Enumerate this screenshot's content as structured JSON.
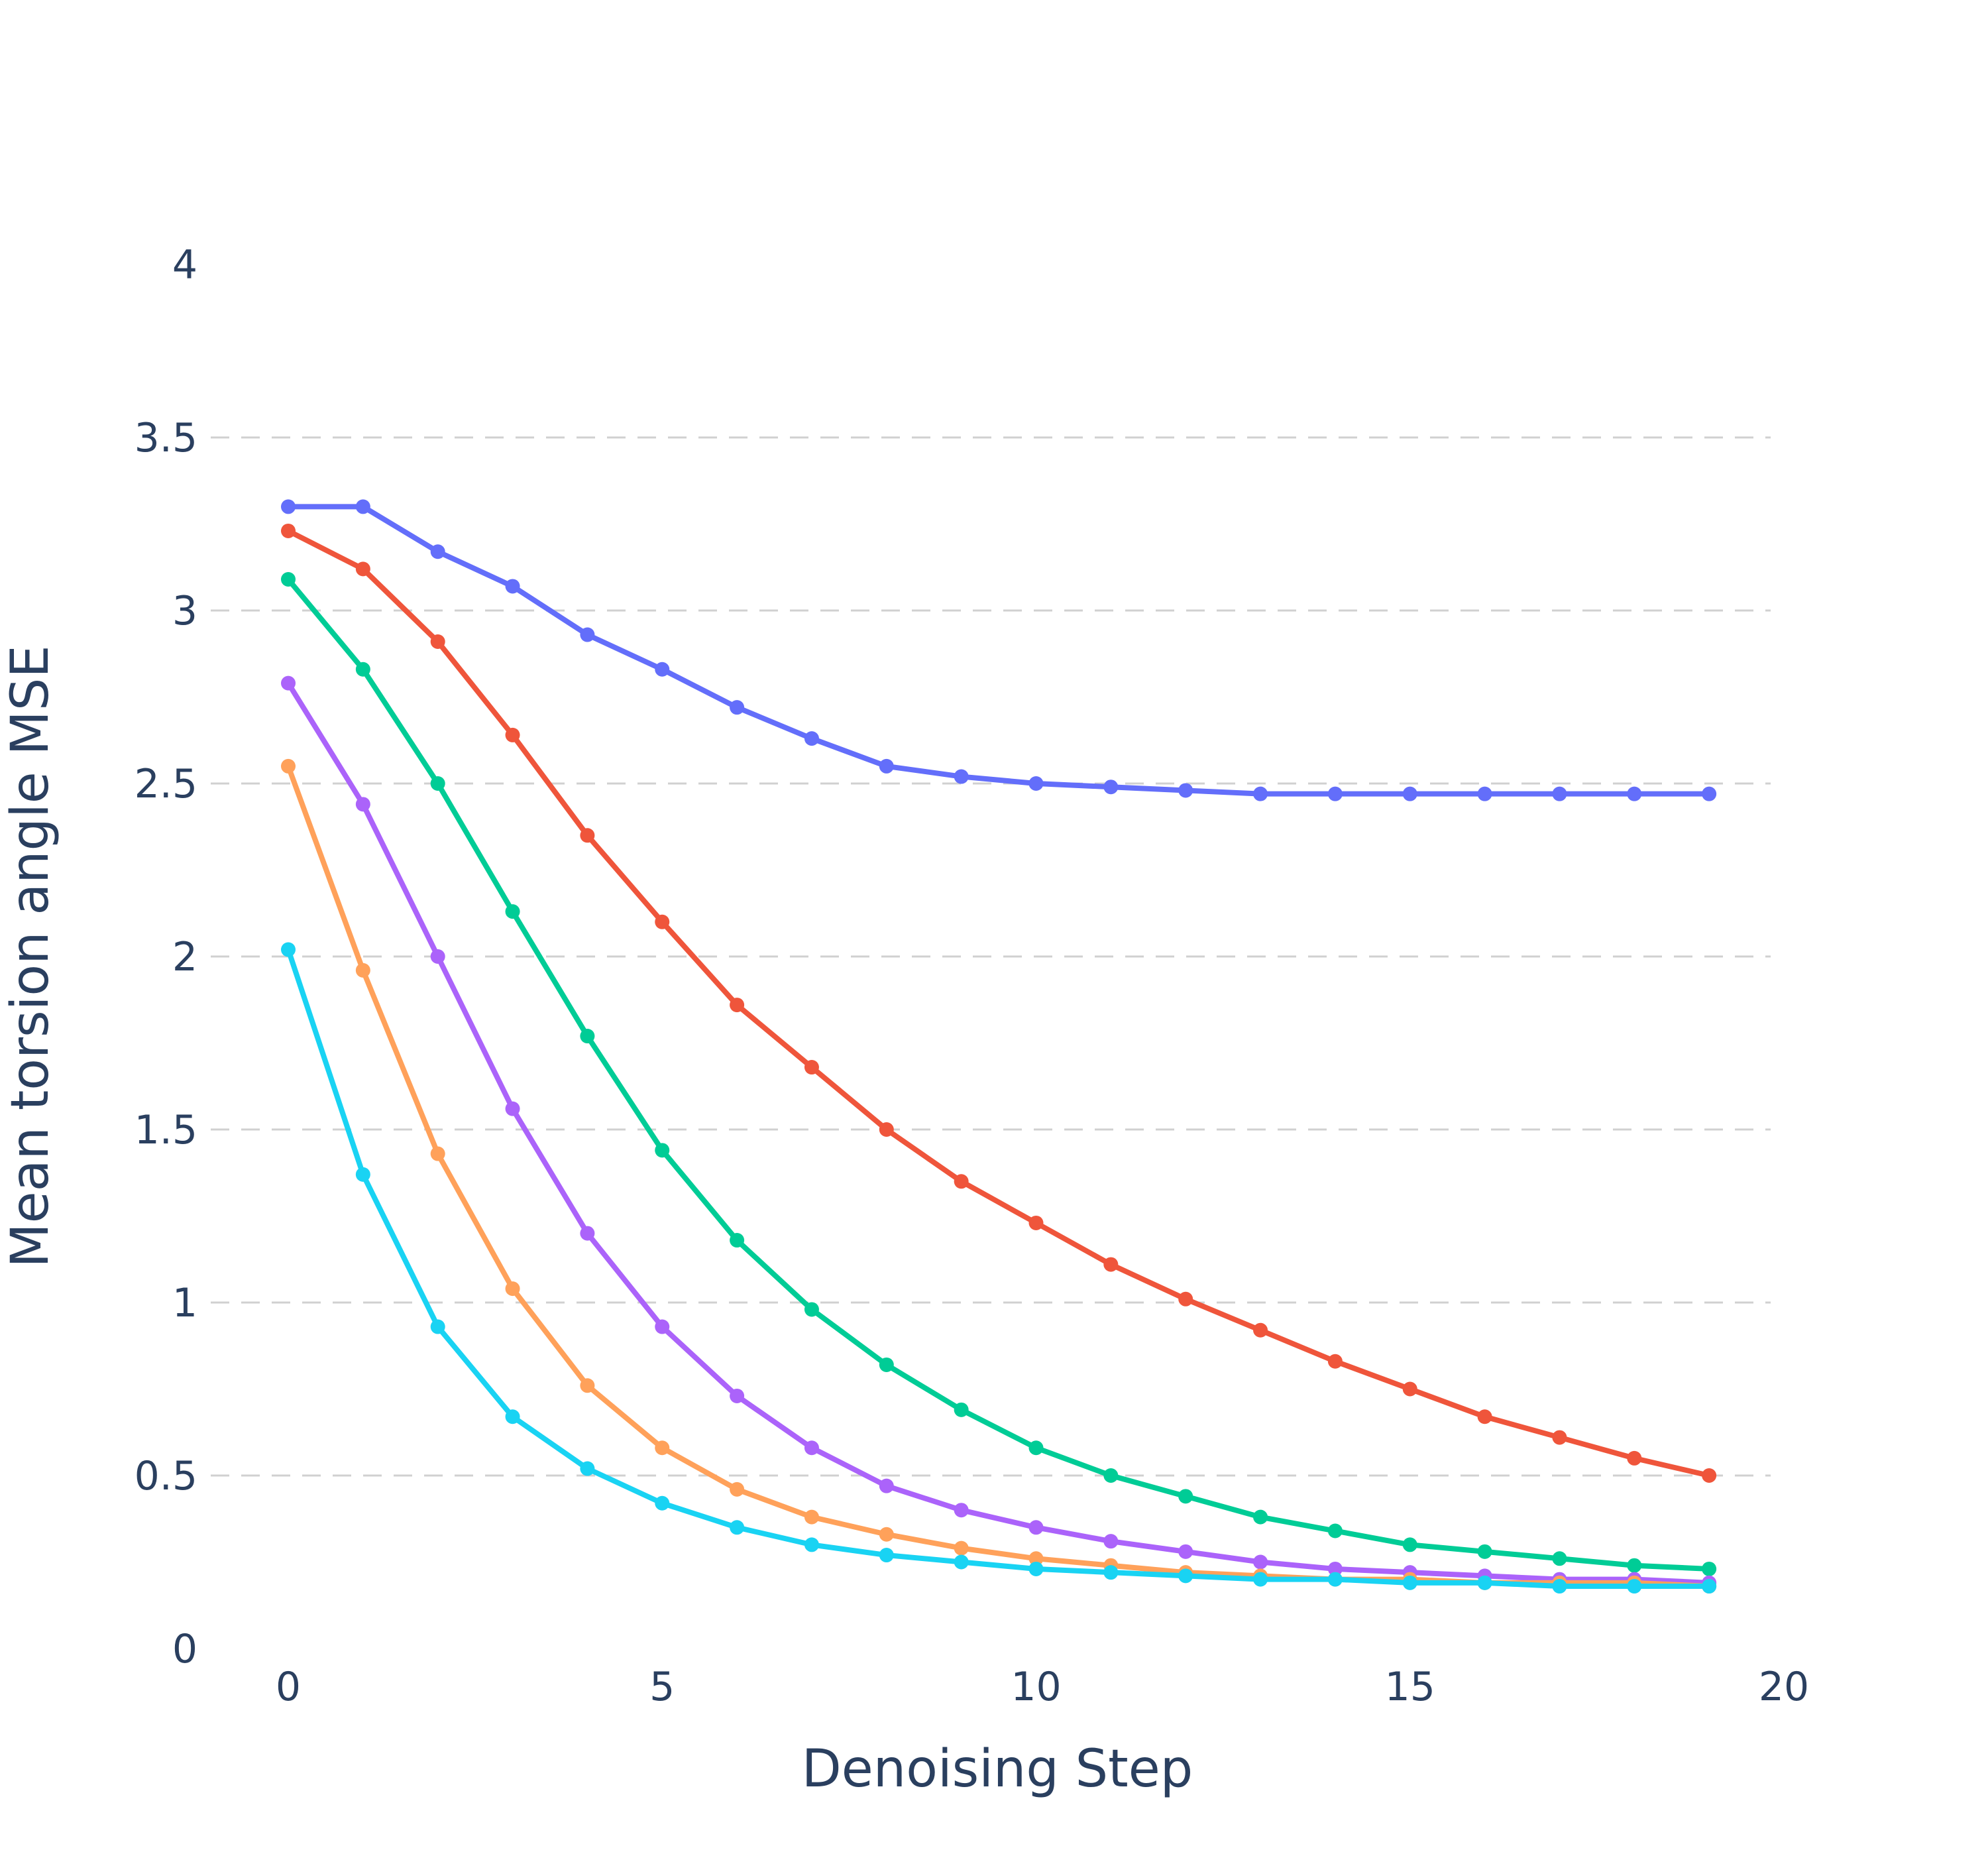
{
  "chart_data": {
    "type": "line",
    "title": "",
    "xlabel": "Denoising Step",
    "ylabel": "Mean torsion angle MSE",
    "xlim": [
      -1,
      20.5
    ],
    "ylim": [
      0,
      4
    ],
    "xticks": [
      "0",
      "5",
      "10",
      "15",
      "20"
    ],
    "yticks": [
      "0",
      "0.5",
      "1",
      "1.5",
      "2",
      "2.5",
      "3",
      "3.5",
      "4"
    ],
    "grid": {
      "y": true,
      "x": false,
      "style": "dashed"
    },
    "markers": true,
    "x": [
      0,
      1,
      2,
      3,
      4,
      5,
      6,
      7,
      8,
      9,
      10,
      11,
      12,
      13,
      14,
      15,
      16,
      17,
      18,
      19
    ],
    "series": [
      {
        "color": "#636efa",
        "values": [
          3.3,
          3.3,
          3.17,
          3.07,
          2.93,
          2.83,
          2.72,
          2.63,
          2.55,
          2.52,
          2.5,
          2.49,
          2.48,
          2.47,
          2.47,
          2.47,
          2.47,
          2.47,
          2.47,
          2.47
        ]
      },
      {
        "color": "#ef553b",
        "values": [
          3.23,
          3.12,
          2.91,
          2.64,
          2.35,
          2.1,
          1.86,
          1.68,
          1.5,
          1.35,
          1.23,
          1.11,
          1.01,
          0.92,
          0.83,
          0.75,
          0.67,
          0.61,
          0.55,
          0.5
        ]
      },
      {
        "color": "#00cc96",
        "values": [
          3.09,
          2.83,
          2.5,
          2.13,
          1.77,
          1.44,
          1.18,
          0.98,
          0.82,
          0.69,
          0.58,
          0.5,
          0.44,
          0.38,
          0.34,
          0.3,
          0.28,
          0.26,
          0.24,
          0.23
        ]
      },
      {
        "color": "#ab63fa",
        "values": [
          2.79,
          2.44,
          2.0,
          1.56,
          1.2,
          0.93,
          0.73,
          0.58,
          0.47,
          0.4,
          0.35,
          0.31,
          0.28,
          0.25,
          0.23,
          0.22,
          0.21,
          0.2,
          0.2,
          0.19
        ]
      },
      {
        "color": "#ffa15a",
        "values": [
          2.55,
          1.96,
          1.43,
          1.04,
          0.76,
          0.58,
          0.46,
          0.38,
          0.33,
          0.29,
          0.26,
          0.24,
          0.22,
          0.21,
          0.2,
          0.2,
          0.19,
          0.19,
          0.19,
          0.18
        ]
      },
      {
        "color": "#19d3f3",
        "values": [
          2.02,
          1.37,
          0.93,
          0.67,
          0.52,
          0.42,
          0.35,
          0.3,
          0.27,
          0.25,
          0.23,
          0.22,
          0.21,
          0.2,
          0.2,
          0.19,
          0.19,
          0.18,
          0.18,
          0.18
        ]
      }
    ]
  }
}
